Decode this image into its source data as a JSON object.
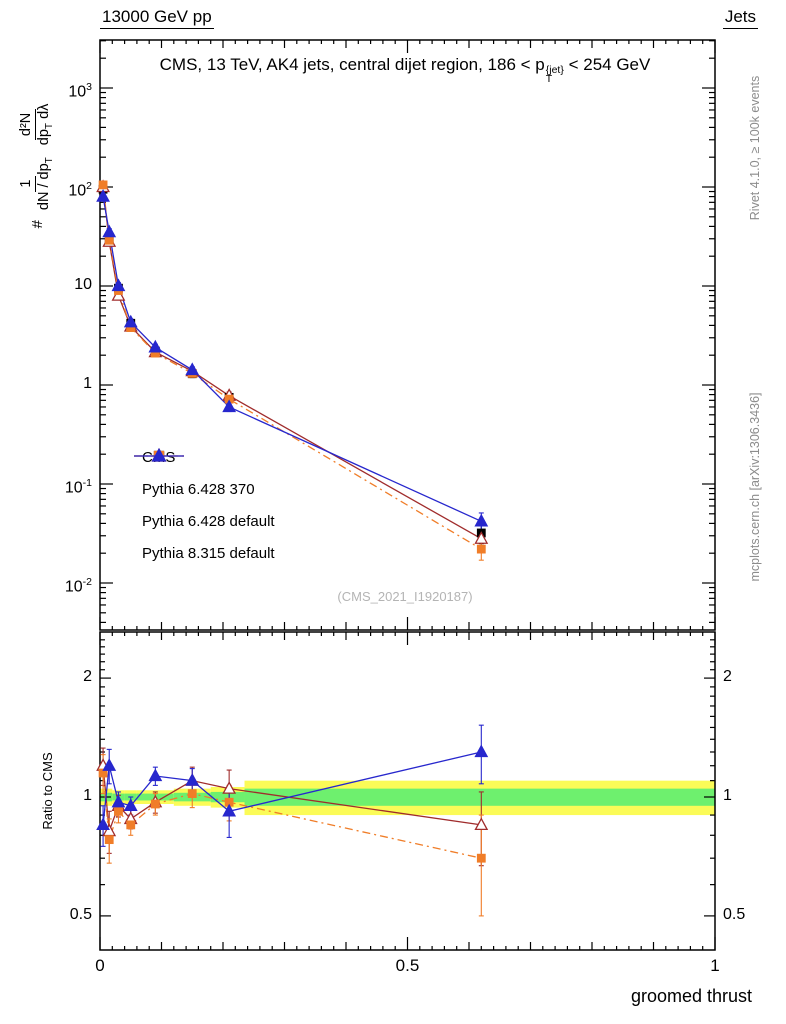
{
  "header": {
    "left": "13000 GeV pp",
    "right": "Jets"
  },
  "title": {
    "pre": "CMS, 13 TeV, AK4 jets, central dijet region, 186 < p",
    "sup": "{jet}",
    "sub": "T",
    "post": " < 254 GeV"
  },
  "ylabel": {
    "prefix": "#",
    "f1num": "1",
    "f1den_a": "dN / dp",
    "f1den_sub": "T",
    "f2num": "d²N",
    "f2den_a": "dp",
    "f2den_sub": "T",
    "f2den_b": " dλ"
  },
  "ratio_ylabel": "Ratio to CMS",
  "xlabel": "groomed thrust",
  "watermark": "(CMS_2021_I1920187)",
  "side_notes": {
    "top": "Rivet 4.1.0, ≥ 100k events",
    "bottom": "mcplots.cern.ch [arXiv:1306.3436]"
  },
  "chart_data": {
    "type": "line",
    "title": "CMS, 13 TeV, AK4 jets, central dijet region, 186 < pT{jet} < 254 GeV",
    "xlabel": "groomed thrust",
    "ylabel": "# 1/(dN/dpT) d2N/(dpT dlambda)",
    "x": [
      0.005,
      0.015,
      0.03,
      0.05,
      0.09,
      0.15,
      0.21,
      0.62
    ],
    "xlim": [
      0,
      1
    ],
    "ylim_main_log": [
      0.0033,
      3000
    ],
    "ylim_ratio_log": [
      0.41,
      2.62
    ],
    "series": [
      {
        "name": "CMS",
        "color": "#000000",
        "marker": "square",
        "fill": true,
        "line": "none",
        "values": [
          95,
          30,
          9.5,
          4.2,
          2.2,
          1.3,
          0.75,
          0.032
        ],
        "err": [
          8,
          2.5,
          0.8,
          0.35,
          0.18,
          0.11,
          0.07,
          0.007
        ]
      },
      {
        "name": "Pythia 6.428 370",
        "color": "#a02c2c",
        "marker": "triangle",
        "fill": false,
        "line": "solid",
        "values": [
          100,
          28,
          8.0,
          3.9,
          2.15,
          1.38,
          0.78,
          0.028
        ],
        "err": [
          9,
          2.4,
          0.7,
          0.3,
          0.16,
          0.1,
          0.07,
          0.006
        ],
        "ratio": [
          1.2,
          0.82,
          0.95,
          0.88,
          0.97,
          1.1,
          1.05,
          0.85
        ],
        "ratio_err": [
          0.13,
          0.1,
          0.06,
          0.05,
          0.06,
          0.09,
          0.12,
          0.18
        ]
      },
      {
        "name": "Pythia 6.428 default",
        "color": "#f07d28",
        "marker": "square",
        "fill": true,
        "line": "dashdot",
        "values": [
          105,
          29,
          9.0,
          3.8,
          2.1,
          1.31,
          0.72,
          0.022
        ],
        "err": [
          9,
          2.4,
          0.7,
          0.3,
          0.16,
          0.1,
          0.06,
          0.005
        ],
        "ratio": [
          1.15,
          0.78,
          0.92,
          0.85,
          0.96,
          1.02,
          0.97,
          0.7
        ],
        "ratio_err": [
          0.13,
          0.1,
          0.06,
          0.05,
          0.06,
          0.08,
          0.1,
          0.2
        ]
      },
      {
        "name": "Pythia 8.315 default",
        "color": "#2727cd",
        "marker": "triangle",
        "fill": true,
        "line": "solid",
        "values": [
          80,
          35,
          10.0,
          4.3,
          2.4,
          1.42,
          0.6,
          0.042
        ],
        "err": [
          7,
          3,
          0.8,
          0.35,
          0.18,
          0.11,
          0.06,
          0.009
        ],
        "ratio": [
          0.85,
          1.2,
          0.97,
          0.95,
          1.13,
          1.1,
          0.92,
          1.3
        ],
        "ratio_err": [
          0.1,
          0.12,
          0.06,
          0.05,
          0.06,
          0.08,
          0.13,
          0.22
        ]
      }
    ],
    "axes": {
      "x_ticks": [
        {
          "v": 0,
          "t": "0"
        },
        {
          "v": 0.5,
          "t": "0.5"
        },
        {
          "v": 1,
          "t": "1"
        }
      ],
      "y_main_ticks": [
        {
          "v": 1000,
          "t": "10",
          "e": "3"
        },
        {
          "v": 100,
          "t": "10",
          "e": "2"
        },
        {
          "v": 10,
          "t": "10",
          "e": ""
        },
        {
          "v": 1,
          "t": "1",
          "e": ""
        },
        {
          "v": 0.1,
          "t": "10",
          "e": "-1"
        },
        {
          "v": 0.01,
          "t": "10",
          "e": "-2"
        }
      ],
      "y_ratio_ticks": [
        {
          "v": 2,
          "t": "2"
        },
        {
          "v": 1,
          "t": "1"
        },
        {
          "v": 0.5,
          "t": "0.5"
        }
      ]
    },
    "ratio_band": {
      "yellow": "#fbfb57",
      "green": "#6ef06e",
      "bins": [
        {
          "x0": 0.0,
          "x1": 0.01,
          "e": 0.05
        },
        {
          "x0": 0.01,
          "x1": 0.02,
          "e": 0.05
        },
        {
          "x0": 0.02,
          "x1": 0.04,
          "e": 0.04
        },
        {
          "x0": 0.04,
          "x1": 0.06,
          "e": 0.04
        },
        {
          "x0": 0.06,
          "x1": 0.12,
          "e": 0.04
        },
        {
          "x0": 0.12,
          "x1": 0.18,
          "e": 0.05
        },
        {
          "x0": 0.18,
          "x1": 0.235,
          "e": 0.06
        },
        {
          "x0": 0.235,
          "x1": 1.0,
          "e": 0.1
        }
      ]
    }
  }
}
